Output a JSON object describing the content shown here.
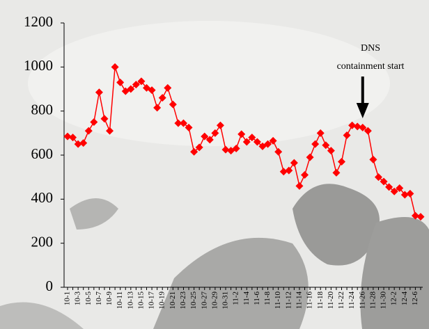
{
  "chart_data": {
    "type": "line",
    "categories": [
      "10-1",
      null,
      "10-3",
      null,
      "10-5",
      null,
      "10-7",
      null,
      "10-9",
      null,
      "10-11",
      null,
      "10-13",
      null,
      "10-15",
      null,
      "10-17",
      null,
      "10-19",
      null,
      "10-21",
      null,
      "10-23",
      null,
      "10-25",
      null,
      "10-27",
      null,
      "10-29",
      null,
      "10-31",
      null,
      "11-2",
      null,
      "11-4",
      null,
      "11-6",
      null,
      "11-8",
      null,
      "11-10",
      null,
      "11-12",
      null,
      "11-14",
      null,
      "11-16",
      null,
      "11-18",
      null,
      "11-20",
      null,
      "11-22",
      null,
      "11-24",
      null,
      "11-26",
      null,
      "11-28",
      null,
      "11-30",
      null,
      "12-2",
      null,
      "12-4",
      null,
      "12-6",
      null
    ],
    "series": [
      {
        "color": "#ff0000",
        "values": [
          685,
          680,
          650,
          655,
          710,
          750,
          885,
          765,
          710,
          1000,
          930,
          890,
          900,
          920,
          935,
          905,
          895,
          815,
          860,
          905,
          830,
          745,
          745,
          725,
          615,
          635,
          685,
          670,
          700,
          735,
          625,
          620,
          630,
          695,
          660,
          680,
          660,
          640,
          650,
          665,
          615,
          525,
          530,
          565,
          460,
          510,
          590,
          650,
          700,
          645,
          620,
          520,
          570,
          690,
          735,
          730,
          725,
          710,
          580,
          500,
          480,
          455,
          435,
          450,
          420,
          425,
          325,
          320
        ]
      }
    ],
    "ylim": [
      0,
      1200
    ],
    "yticks": [
      0,
      200,
      400,
      600,
      800,
      1000,
      1200
    ],
    "annotation": {
      "lines": [
        "DNS",
        "containment start"
      ],
      "category_index": 56
    }
  }
}
